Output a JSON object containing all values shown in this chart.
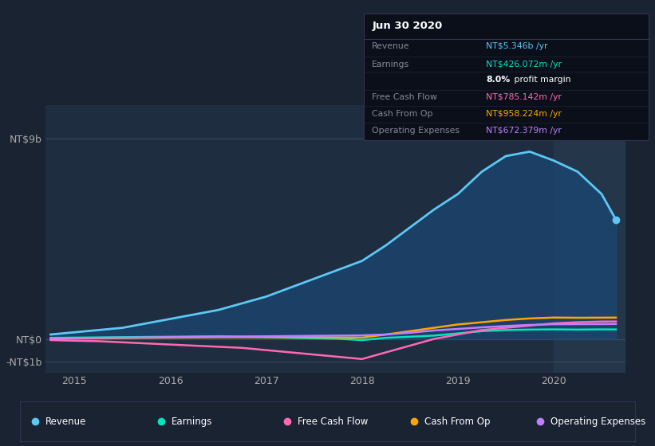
{
  "background_color": "#1a2332",
  "plot_bg_color": "#1e2d40",
  "title_box_title": "Jun 30 2020",
  "title_box_rows": [
    {
      "label": "Revenue",
      "value": "NT$5.346b",
      "suffix": " /yr",
      "value_color": "#5bc8f5",
      "is_margin": false
    },
    {
      "label": "Earnings",
      "value": "NT$426.072m",
      "suffix": " /yr",
      "value_color": "#00e5c0",
      "is_margin": false
    },
    {
      "label": "",
      "value": "8.0%",
      "suffix": " profit margin",
      "value_color": "#ffffff",
      "is_margin": true
    },
    {
      "label": "Free Cash Flow",
      "value": "NT$785.142m",
      "suffix": " /yr",
      "value_color": "#ff69b4",
      "is_margin": false
    },
    {
      "label": "Cash From Op",
      "value": "NT$958.224m",
      "suffix": " /yr",
      "value_color": "#ffa500",
      "is_margin": false
    },
    {
      "label": "Operating Expenses",
      "value": "NT$672.379m",
      "suffix": " /yr",
      "value_color": "#bf7fff",
      "is_margin": false
    }
  ],
  "y_axis_labels": [
    "NT$9b",
    "NT$0",
    "-NT$1b"
  ],
  "y_axis_values": [
    9000000000,
    0,
    -1000000000
  ],
  "x_ticks": [
    2015,
    2016,
    2017,
    2018,
    2019,
    2020
  ],
  "ylim": [
    -1500000000,
    10500000000
  ],
  "xlim_start": 2014.7,
  "xlim_end": 2020.75,
  "revenue_x": [
    2014.75,
    2015.0,
    2015.25,
    2015.5,
    2015.75,
    2016.0,
    2016.25,
    2016.5,
    2016.75,
    2017.0,
    2017.25,
    2017.5,
    2017.75,
    2018.0,
    2018.25,
    2018.5,
    2018.75,
    2019.0,
    2019.25,
    2019.5,
    2019.75,
    2020.0,
    2020.25,
    2020.5,
    2020.65
  ],
  "revenue_y": [
    200000000,
    300000000,
    400000000,
    500000000,
    700000000,
    900000000,
    1100000000,
    1300000000,
    1600000000,
    1900000000,
    2300000000,
    2700000000,
    3100000000,
    3500000000,
    4200000000,
    5000000000,
    5800000000,
    6500000000,
    7500000000,
    8200000000,
    8400000000,
    8000000000,
    7500000000,
    6500000000,
    5346000000
  ],
  "revenue_color": "#5bc8f5",
  "revenue_fill_color": "#1a4a7a",
  "earnings_x": [
    2014.75,
    2015.0,
    2015.25,
    2015.5,
    2015.75,
    2016.0,
    2016.25,
    2016.5,
    2016.75,
    2017.0,
    2017.25,
    2017.5,
    2017.75,
    2018.0,
    2018.25,
    2018.5,
    2018.75,
    2019.0,
    2019.25,
    2019.5,
    2019.75,
    2020.0,
    2020.25,
    2020.5,
    2020.65
  ],
  "earnings_y": [
    50000000,
    60000000,
    70000000,
    80000000,
    90000000,
    100000000,
    110000000,
    120000000,
    100000000,
    80000000,
    50000000,
    30000000,
    10000000,
    -50000000,
    50000000,
    100000000,
    150000000,
    250000000,
    350000000,
    400000000,
    420000000,
    430000000,
    420000000,
    430000000,
    426000000
  ],
  "earnings_color": "#00e5c0",
  "fcf_x": [
    2014.75,
    2015.0,
    2015.25,
    2015.5,
    2015.75,
    2016.0,
    2016.25,
    2016.5,
    2016.75,
    2017.0,
    2017.25,
    2017.5,
    2017.75,
    2018.0,
    2018.25,
    2018.5,
    2018.75,
    2019.0,
    2019.25,
    2019.5,
    2019.75,
    2020.0,
    2020.25,
    2020.5,
    2020.65
  ],
  "fcf_y": [
    -50000000,
    -80000000,
    -100000000,
    -150000000,
    -200000000,
    -250000000,
    -300000000,
    -350000000,
    -400000000,
    -500000000,
    -600000000,
    -700000000,
    -800000000,
    -900000000,
    -600000000,
    -300000000,
    0,
    200000000,
    400000000,
    500000000,
    600000000,
    700000000,
    750000000,
    780000000,
    785000000
  ],
  "fcf_color": "#ff69b4",
  "cashop_x": [
    2014.75,
    2015.0,
    2015.25,
    2015.5,
    2015.75,
    2016.0,
    2016.25,
    2016.5,
    2016.75,
    2017.0,
    2017.25,
    2017.5,
    2017.75,
    2018.0,
    2018.25,
    2018.5,
    2018.75,
    2019.0,
    2019.25,
    2019.5,
    2019.75,
    2020.0,
    2020.25,
    2020.5,
    2020.65
  ],
  "cashop_y": [
    0,
    20000000,
    30000000,
    40000000,
    50000000,
    60000000,
    70000000,
    80000000,
    80000000,
    80000000,
    80000000,
    80000000,
    70000000,
    60000000,
    200000000,
    350000000,
    500000000,
    650000000,
    750000000,
    850000000,
    920000000,
    960000000,
    950000000,
    955000000,
    958000000
  ],
  "cashop_color": "#ffa500",
  "opex_x": [
    2014.75,
    2015.0,
    2015.25,
    2015.5,
    2015.75,
    2016.0,
    2016.25,
    2016.5,
    2016.75,
    2017.0,
    2017.25,
    2017.5,
    2017.75,
    2018.0,
    2018.25,
    2018.5,
    2018.75,
    2019.0,
    2019.25,
    2019.5,
    2019.75,
    2020.0,
    2020.25,
    2020.5,
    2020.65
  ],
  "opex_y": [
    30000000,
    40000000,
    50000000,
    60000000,
    70000000,
    80000000,
    90000000,
    100000000,
    110000000,
    120000000,
    130000000,
    140000000,
    150000000,
    160000000,
    200000000,
    280000000,
    380000000,
    450000000,
    520000000,
    580000000,
    630000000,
    660000000,
    665000000,
    668000000,
    672000000
  ],
  "opex_color": "#bf7fff",
  "highlight_x_start": 2020.0,
  "highlight_x_end": 2020.75,
  "highlight_color": "#2a3f55",
  "highlight_alpha": 0.5,
  "legend": [
    {
      "label": "Revenue",
      "color": "#5bc8f5"
    },
    {
      "label": "Earnings",
      "color": "#00e5c0"
    },
    {
      "label": "Free Cash Flow",
      "color": "#ff69b4"
    },
    {
      "label": "Cash From Op",
      "color": "#ffa500"
    },
    {
      "label": "Operating Expenses",
      "color": "#bf7fff"
    }
  ]
}
